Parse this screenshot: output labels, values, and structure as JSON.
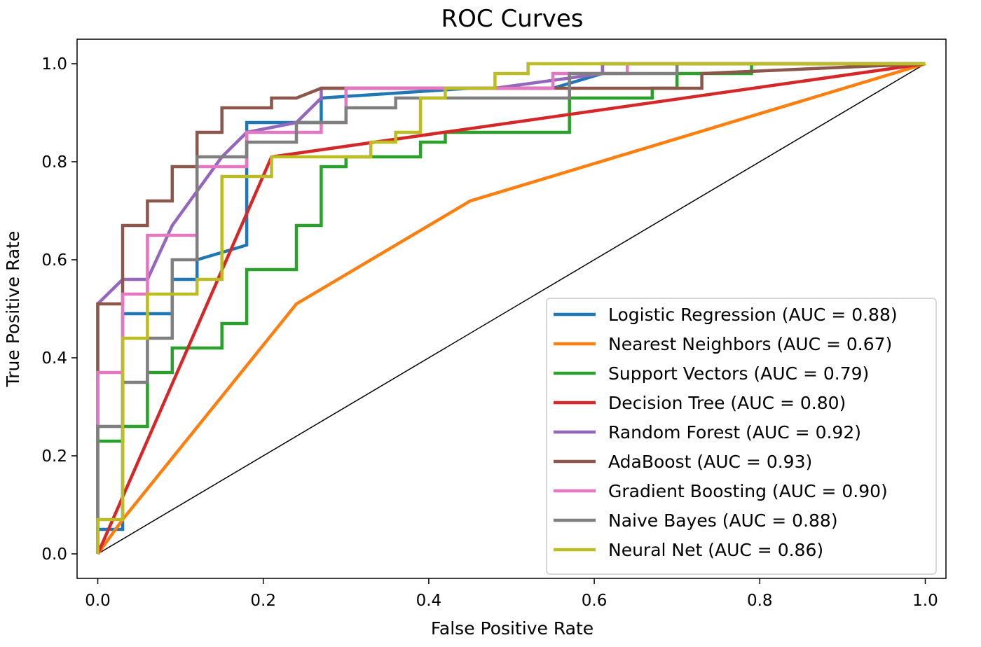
{
  "chart_data": {
    "type": "line",
    "title": "ROC Curves",
    "xlabel": "False Positive Rate",
    "ylabel": "True Positive Rate",
    "xlim": [
      -0.025,
      1.025
    ],
    "ylim": [
      -0.05,
      1.05
    ],
    "xticks": [
      "0.0",
      "0.2",
      "0.4",
      "0.6",
      "0.8",
      "1.0"
    ],
    "yticks": [
      "0.0",
      "0.2",
      "0.4",
      "0.6",
      "0.8",
      "1.0"
    ],
    "grid": false,
    "legend_position": "lower-right",
    "diagonal": {
      "x": [
        0,
        1
      ],
      "y": [
        0,
        1
      ],
      "color": "#000000"
    },
    "series": [
      {
        "name": "Logistic Regression (AUC = 0.88)",
        "color": "#1f77b4",
        "x": [
          0,
          0,
          0.03,
          0.03,
          0.09,
          0.09,
          0.12,
          0.12,
          0.18,
          0.18,
          0.24,
          0.24,
          0.27,
          0.27,
          0.45,
          0.48,
          0.55,
          0.61,
          0.61,
          0.67,
          0.67,
          1.0
        ],
        "y": [
          0,
          0.05,
          0.05,
          0.49,
          0.49,
          0.56,
          0.56,
          0.6,
          0.63,
          0.88,
          0.88,
          0.88,
          0.88,
          0.93,
          0.95,
          0.95,
          0.95,
          0.98,
          1.0,
          1.0,
          1.0,
          1.0
        ]
      },
      {
        "name": "Nearest Neighbors (AUC = 0.67)",
        "color": "#ff7f0e",
        "x": [
          0,
          0.03,
          0.24,
          0.45,
          1.0
        ],
        "y": [
          0,
          0.07,
          0.51,
          0.72,
          1.0
        ]
      },
      {
        "name": "Support Vectors (AUC = 0.79)",
        "color": "#2ca02c",
        "x": [
          0,
          0,
          0.03,
          0.03,
          0.06,
          0.06,
          0.09,
          0.09,
          0.15,
          0.15,
          0.18,
          0.18,
          0.24,
          0.24,
          0.27,
          0.27,
          0.3,
          0.3,
          0.39,
          0.39,
          0.42,
          0.42,
          0.57,
          0.57,
          0.67,
          0.67,
          0.7,
          0.7,
          0.79,
          0.79,
          1.0
        ],
        "y": [
          0,
          0.23,
          0.23,
          0.26,
          0.26,
          0.37,
          0.37,
          0.42,
          0.42,
          0.47,
          0.47,
          0.58,
          0.58,
          0.67,
          0.67,
          0.79,
          0.79,
          0.81,
          0.81,
          0.84,
          0.84,
          0.86,
          0.86,
          0.93,
          0.93,
          0.95,
          0.95,
          0.98,
          0.98,
          1.0,
          1.0
        ]
      },
      {
        "name": "Decision Tree (AUC = 0.80)",
        "color": "#d62728",
        "x": [
          0,
          0.21,
          1.0
        ],
        "y": [
          0,
          0.81,
          1.0
        ]
      },
      {
        "name": "Random Forest (AUC = 0.92)",
        "color": "#9467bd",
        "x": [
          0,
          0,
          0.03,
          0.06,
          0.09,
          0.15,
          0.18,
          0.18,
          0.24,
          0.24,
          0.27,
          0.27,
          0.45,
          0.48,
          0.61,
          0.61,
          1.0
        ],
        "y": [
          0,
          0.51,
          0.56,
          0.56,
          0.67,
          0.81,
          0.86,
          0.86,
          0.88,
          0.88,
          0.93,
          0.95,
          0.95,
          0.95,
          0.98,
          1.0,
          1.0
        ]
      },
      {
        "name": "AdaBoost (AUC = 0.93)",
        "color": "#8c564b",
        "x": [
          0,
          0,
          0.03,
          0.03,
          0.06,
          0.06,
          0.09,
          0.09,
          0.12,
          0.12,
          0.15,
          0.15,
          0.21,
          0.21,
          0.24,
          0.24,
          0.27,
          0.27,
          0.57,
          0.57,
          0.73,
          0.73,
          1.0
        ],
        "y": [
          0,
          0.51,
          0.51,
          0.67,
          0.67,
          0.72,
          0.72,
          0.79,
          0.79,
          0.86,
          0.86,
          0.91,
          0.91,
          0.93,
          0.93,
          0.93,
          0.95,
          0.95,
          0.95,
          0.95,
          0.95,
          0.98,
          1.0
        ]
      },
      {
        "name": "Gradient Boosting (AUC = 0.90)",
        "color": "#e377c2",
        "x": [
          0,
          0,
          0.03,
          0.03,
          0.06,
          0.06,
          0.12,
          0.12,
          0.18,
          0.18,
          0.27,
          0.27,
          0.3,
          0.3,
          0.55,
          0.55,
          0.64,
          0.64,
          1.0
        ],
        "y": [
          0,
          0.37,
          0.37,
          0.53,
          0.53,
          0.65,
          0.65,
          0.79,
          0.79,
          0.86,
          0.86,
          0.88,
          0.88,
          0.95,
          0.95,
          0.98,
          0.98,
          1.0,
          1.0
        ]
      },
      {
        "name": "Naive Bayes (AUC = 0.88)",
        "color": "#7f7f7f",
        "x": [
          0,
          0,
          0.03,
          0.03,
          0.06,
          0.06,
          0.09,
          0.09,
          0.12,
          0.12,
          0.18,
          0.18,
          0.24,
          0.24,
          0.3,
          0.3,
          0.36,
          0.36,
          0.57,
          0.57,
          0.7,
          0.7,
          1.0
        ],
        "y": [
          0,
          0.26,
          0.26,
          0.35,
          0.35,
          0.44,
          0.44,
          0.6,
          0.6,
          0.81,
          0.81,
          0.84,
          0.84,
          0.88,
          0.88,
          0.91,
          0.91,
          0.93,
          0.93,
          0.98,
          0.98,
          1.0,
          1.0
        ]
      },
      {
        "name": "Neural Net (AUC = 0.86)",
        "color": "#bcbd22",
        "x": [
          0,
          0,
          0.03,
          0.03,
          0.06,
          0.06,
          0.12,
          0.12,
          0.15,
          0.15,
          0.21,
          0.21,
          0.33,
          0.33,
          0.36,
          0.36,
          0.39,
          0.39,
          0.42,
          0.42,
          0.48,
          0.48,
          0.52,
          0.52,
          1.0
        ],
        "y": [
          0,
          0.07,
          0.07,
          0.44,
          0.44,
          0.53,
          0.53,
          0.56,
          0.56,
          0.77,
          0.77,
          0.81,
          0.81,
          0.84,
          0.84,
          0.86,
          0.86,
          0.93,
          0.93,
          0.95,
          0.95,
          0.98,
          0.98,
          1.0,
          1.0
        ]
      }
    ]
  }
}
